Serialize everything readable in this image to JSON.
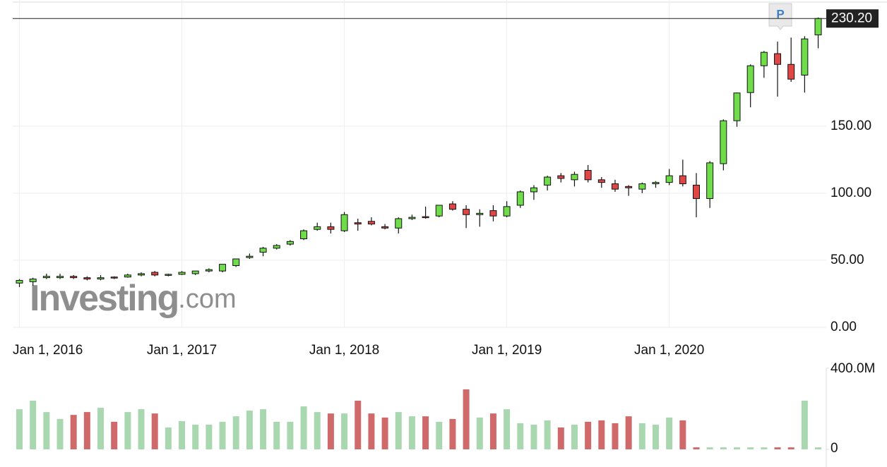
{
  "chart_data": {
    "type": "candlestick",
    "categories": [
      "Jan 1, 2016",
      null,
      null,
      null,
      null,
      null,
      null,
      null,
      null,
      null,
      null,
      null,
      "Jan 1, 2017",
      null,
      null,
      null,
      null,
      null,
      null,
      null,
      null,
      null,
      null,
      null,
      "Jan 1, 2018",
      null,
      null,
      null,
      null,
      null,
      null,
      null,
      null,
      null,
      null,
      null,
      "Jan 1, 2019",
      null,
      null,
      null,
      null,
      null,
      null,
      null,
      null,
      null,
      null,
      null,
      "Jan 1, 2020",
      null,
      null,
      null,
      null,
      null,
      null,
      null,
      null,
      null,
      null,
      null
    ],
    "open": [
      33,
      34,
      37,
      37,
      38,
      37,
      36,
      37.5,
      37.5,
      39,
      41,
      39,
      39.5,
      40,
      42,
      42,
      46,
      52,
      56,
      59,
      62,
      66,
      73,
      75,
      72,
      78,
      79,
      75,
      74,
      81,
      82.5,
      83,
      92,
      88,
      84,
      87,
      83,
      91,
      101,
      106,
      113,
      110,
      117,
      110,
      107,
      105,
      103,
      107,
      108,
      113,
      106,
      96,
      122,
      154,
      175,
      195,
      204,
      196,
      188,
      218
    ],
    "high": [
      36,
      37,
      40,
      40,
      39,
      38,
      39,
      38,
      40,
      41,
      42,
      40,
      42,
      42,
      44,
      47,
      51,
      55,
      60,
      62,
      65,
      73,
      78,
      78,
      86,
      81,
      82,
      77,
      82,
      84,
      90,
      91,
      94,
      91,
      88,
      91,
      94,
      102,
      106,
      113,
      115,
      116,
      121,
      112,
      110,
      106,
      108,
      109,
      118,
      125,
      115,
      124,
      155,
      175,
      196,
      206,
      213,
      216,
      217,
      231
    ],
    "low": [
      30,
      31,
      36,
      36,
      36,
      35,
      35,
      36,
      37,
      38,
      38,
      38,
      39,
      39,
      41,
      41,
      45,
      51,
      53,
      58,
      61,
      65,
      72,
      70,
      71,
      72,
      76,
      73,
      70,
      80,
      81,
      82,
      87,
      74,
      75,
      79,
      82,
      89,
      95,
      102,
      108,
      105,
      108,
      104,
      101,
      98,
      100,
      104,
      106,
      105,
      82,
      89,
      117,
      149.5,
      164,
      186,
      172,
      183,
      175,
      208
    ],
    "close": [
      35,
      36,
      38,
      38,
      37,
      36,
      37,
      37,
      39,
      40,
      39,
      39.5,
      41,
      42,
      43,
      47,
      51,
      53,
      59,
      61,
      64,
      72,
      75,
      73,
      84,
      77,
      77,
      74,
      81,
      82,
      82,
      91,
      88,
      84,
      85,
      83,
      90,
      101,
      104,
      112,
      111,
      114,
      110,
      108,
      103,
      104,
      107,
      108,
      113,
      107,
      96,
      122.6,
      154,
      174.7,
      195,
      205,
      196,
      185,
      215,
      230.2
    ],
    "volume": [
      198000000,
      240000000,
      184000000,
      150000000,
      170000000,
      184000000,
      205000000,
      136000000,
      184000000,
      198000000,
      177000000,
      108000000,
      139000000,
      122000000,
      122000000,
      136000000,
      163000000,
      191000000,
      198000000,
      136000000,
      136000000,
      212000000,
      184000000,
      177000000,
      177000000,
      240000000,
      177000000,
      157000000,
      184000000,
      163000000,
      163000000,
      136000000,
      150000000,
      296000000,
      157000000,
      177000000,
      198000000,
      129000000,
      122000000,
      143000000,
      108000000,
      122000000,
      136000000,
      143000000,
      129000000,
      163000000,
      129000000,
      122000000,
      157000000,
      143000000,
      10000000,
      10000000,
      10000000,
      10000000,
      10000000,
      10000000,
      10000000,
      10000000,
      240000000,
      10000000
    ],
    "ylim": [
      0,
      244
    ],
    "yticks": [
      {
        "value": 0,
        "label": "0.00"
      },
      {
        "value": 50,
        "label": "50.00"
      },
      {
        "value": 100,
        "label": "100.00"
      },
      {
        "value": 150,
        "label": "150.00"
      }
    ],
    "volume_lim": [
      0,
      400000000
    ],
    "volume_ticks": [
      {
        "value": 0,
        "label": "0"
      },
      {
        "value": 400000000,
        "label": "400.0M"
      }
    ],
    "last_price": {
      "value": 230.2,
      "label": "230.20"
    },
    "grid": true,
    "up_color": "#6fdc4a",
    "down_color": "#e04646",
    "volume_up_color": "#a9d8b0",
    "volume_down_color": "#d06a6a",
    "badge": "P",
    "watermark": {
      "brand": "Investing",
      "suffix": ".com"
    }
  }
}
